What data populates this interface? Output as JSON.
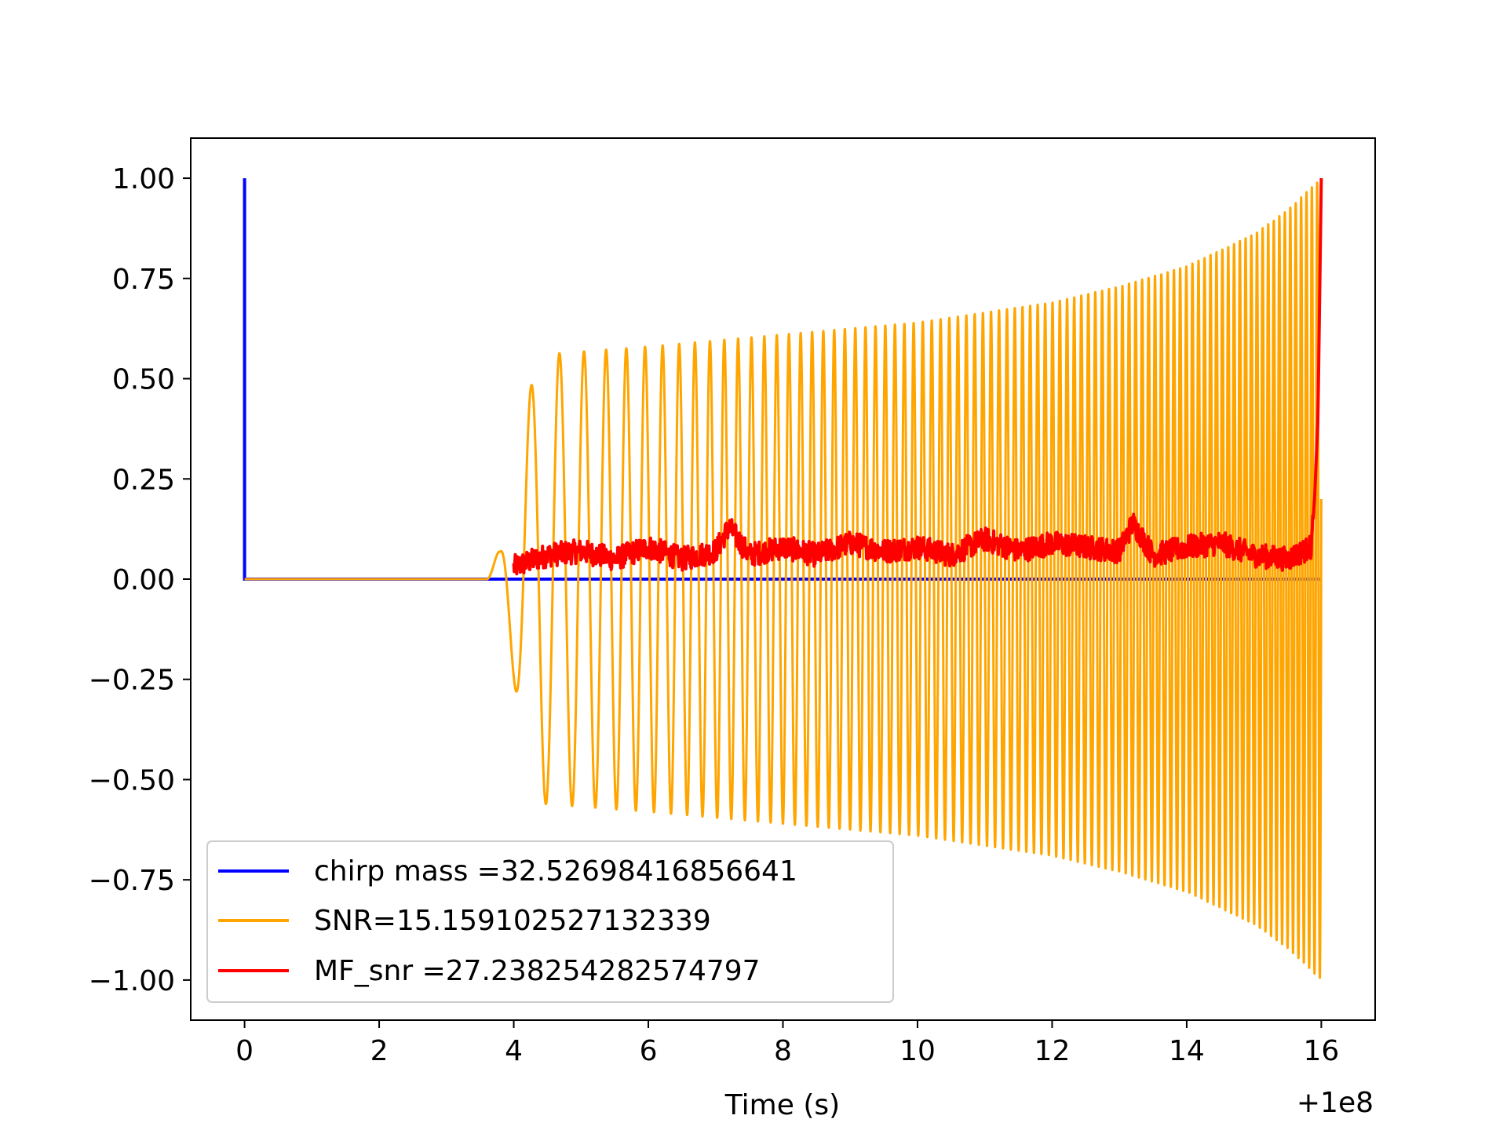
{
  "chart_data": {
    "type": "line",
    "title": "",
    "xlabel": "Time (s)",
    "ylabel": "",
    "x_offset_label": "+1e8",
    "xlim": [
      -0.8,
      16.8
    ],
    "ylim": [
      -1.1,
      1.1
    ],
    "xticks": [
      0,
      2,
      4,
      6,
      8,
      10,
      12,
      14,
      16
    ],
    "xtick_labels": [
      "0",
      "2",
      "4",
      "6",
      "8",
      "10",
      "12",
      "14",
      "16"
    ],
    "yticks": [
      1.0,
      0.75,
      0.5,
      0.25,
      0.0,
      -0.25,
      -0.5,
      -0.75,
      -1.0
    ],
    "ytick_labels": [
      "1.00",
      "0.75",
      "0.50",
      "0.25",
      "0.00",
      "−0.25",
      "−0.50",
      "−0.75",
      "−1.00"
    ],
    "grid": false,
    "legend_position": "lower-left",
    "series": [
      {
        "name": "chirp mass =32.52698416856641",
        "color": "#0000ff",
        "description": "impulse at t=0 rising to 1.0, zero elsewhere",
        "x": [
          0.0,
          0.0,
          0.0,
          16.0
        ],
        "y": [
          1.0,
          1.0,
          0.0,
          0.0
        ]
      },
      {
        "name": "SNR=15.159102527132339",
        "color": "#ffa500",
        "description": "chirp waveform: zero until ~3.6 s, oscillation starts ~3.6 s, envelope grows to ~0.55 by 4.4 s, rising to 1.0 at 16 s",
        "onset_time": 3.6,
        "end_time": 16.0,
        "envelope": {
          "t": [
            3.6,
            3.8,
            4.0,
            4.2,
            4.4,
            6.0,
            8.0,
            10.0,
            12.0,
            13.0,
            14.0,
            15.0,
            15.5,
            16.0
          ],
          "amp": [
            0.0,
            0.08,
            0.25,
            0.45,
            0.56,
            0.58,
            0.61,
            0.64,
            0.69,
            0.73,
            0.78,
            0.86,
            0.92,
            1.0
          ]
        }
      },
      {
        "name": "MF_snr =27.238254282574797",
        "color": "#ff0000",
        "description": "matched-filter SNR trace: noisy around 0.01-0.10 from 4 to 15.8 s, spike to 1.0 at 16 s",
        "x": [
          4.0,
          4.5,
          5.0,
          5.5,
          6.0,
          6.5,
          7.0,
          7.2,
          7.5,
          8.0,
          8.5,
          9.0,
          9.5,
          10.0,
          10.5,
          11.0,
          11.5,
          12.0,
          12.5,
          13.0,
          13.2,
          13.5,
          14.0,
          14.5,
          15.0,
          15.5,
          15.85,
          15.9,
          15.95,
          16.0
        ],
        "y": [
          0.03,
          0.06,
          0.07,
          0.05,
          0.08,
          0.05,
          0.07,
          0.13,
          0.06,
          0.08,
          0.06,
          0.09,
          0.07,
          0.08,
          0.06,
          0.1,
          0.07,
          0.09,
          0.08,
          0.07,
          0.14,
          0.06,
          0.08,
          0.09,
          0.06,
          0.05,
          0.08,
          0.2,
          0.4,
          1.0
        ]
      }
    ]
  }
}
